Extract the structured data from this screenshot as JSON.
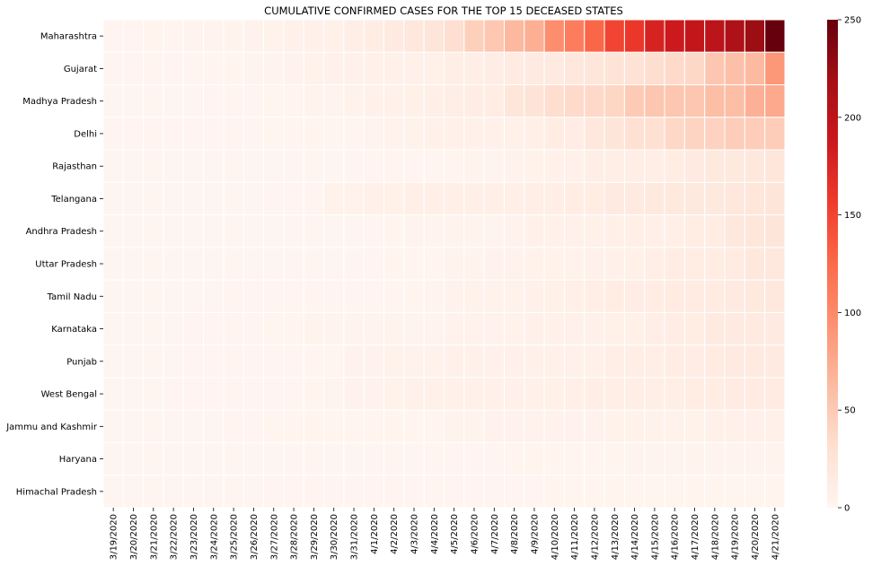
{
  "chart_data": {
    "type": "heatmap",
    "title": "CUMULATIVE CONFIRMED CASES FOR THE TOP 15 DECEASED STATES",
    "xlabel": "",
    "ylabel": "",
    "colormap": "Reds",
    "color_range": [
      0,
      250
    ],
    "colorbar_ticks": [
      0,
      50,
      100,
      150,
      200,
      250
    ],
    "x": [
      "3/19/2020",
      "3/20/2020",
      "3/21/2020",
      "3/22/2020",
      "3/23/2020",
      "3/24/2020",
      "3/25/2020",
      "3/26/2020",
      "3/27/2020",
      "3/28/2020",
      "3/29/2020",
      "3/30/2020",
      "3/31/2020",
      "4/1/2020",
      "4/2/2020",
      "4/3/2020",
      "4/4/2020",
      "4/5/2020",
      "4/6/2020",
      "4/7/2020",
      "4/8/2020",
      "4/9/2020",
      "4/10/2020",
      "4/11/2020",
      "4/12/2020",
      "4/13/2020",
      "4/14/2020",
      "4/15/2020",
      "4/16/2020",
      "4/17/2020",
      "4/18/2020",
      "4/19/2020",
      "4/20/2020",
      "4/21/2020"
    ],
    "y": [
      "Maharashtra",
      "Gujarat",
      "Madhya Pradesh",
      "Delhi",
      "Rajasthan",
      "Telangana",
      "Andhra Pradesh",
      "Uttar Pradesh",
      "Tamil Nadu",
      "Karnataka",
      "Punjab",
      "West Bengal",
      "Jammu and Kashmir",
      "Haryana",
      "Himachal Pradesh"
    ],
    "values": [
      [
        1,
        1,
        2,
        2,
        3,
        3,
        3,
        4,
        5,
        6,
        7,
        8,
        10,
        12,
        16,
        20,
        24,
        32,
        45,
        52,
        64,
        72,
        97,
        110,
        127,
        150,
        160,
        178,
        187,
        194,
        201,
        211,
        223,
        251
      ],
      [
        1,
        1,
        1,
        1,
        1,
        2,
        2,
        3,
        3,
        4,
        5,
        6,
        6,
        6,
        6,
        7,
        8,
        10,
        11,
        13,
        15,
        16,
        17,
        19,
        22,
        26,
        28,
        33,
        36,
        38,
        53,
        58,
        63,
        90
      ],
      [
        0,
        0,
        0,
        0,
        0,
        1,
        1,
        1,
        2,
        2,
        3,
        3,
        5,
        6,
        7,
        8,
        9,
        11,
        13,
        14,
        22,
        26,
        33,
        36,
        37,
        40,
        50,
        53,
        53,
        53,
        60,
        60,
        70,
        76
      ],
      [
        1,
        1,
        1,
        1,
        1,
        1,
        1,
        1,
        2,
        2,
        2,
        2,
        2,
        3,
        4,
        5,
        6,
        7,
        7,
        7,
        8,
        9,
        12,
        13,
        19,
        24,
        30,
        30,
        38,
        42,
        43,
        47,
        47,
        47
      ],
      [
        0,
        0,
        0,
        0,
        0,
        0,
        0,
        0,
        0,
        0,
        0,
        0,
        0,
        1,
        1,
        1,
        1,
        2,
        3,
        3,
        4,
        5,
        6,
        7,
        11,
        11,
        11,
        11,
        14,
        17,
        18,
        18,
        20,
        22
      ],
      [
        0,
        0,
        0,
        0,
        0,
        0,
        0,
        0,
        1,
        1,
        1,
        5,
        5,
        7,
        8,
        9,
        9,
        9,
        9,
        9,
        9,
        11,
        11,
        12,
        14,
        16,
        16,
        18,
        18,
        18,
        18,
        21,
        23,
        24
      ],
      [
        0,
        0,
        0,
        0,
        0,
        0,
        0,
        0,
        0,
        0,
        0,
        0,
        0,
        1,
        2,
        3,
        3,
        3,
        3,
        3,
        4,
        6,
        6,
        7,
        8,
        9,
        9,
        9,
        9,
        12,
        14,
        20,
        22,
        24
      ],
      [
        0,
        0,
        0,
        0,
        0,
        0,
        0,
        0,
        0,
        0,
        0,
        0,
        0,
        1,
        2,
        2,
        2,
        3,
        3,
        4,
        4,
        5,
        5,
        5,
        6,
        6,
        8,
        11,
        14,
        14,
        14,
        15,
        20,
        21
      ],
      [
        0,
        0,
        0,
        0,
        0,
        0,
        1,
        1,
        1,
        1,
        1,
        1,
        1,
        1,
        1,
        2,
        3,
        4,
        5,
        5,
        5,
        7,
        8,
        9,
        10,
        12,
        13,
        14,
        15,
        15,
        15,
        16,
        18,
        20
      ],
      [
        0,
        0,
        0,
        0,
        1,
        1,
        1,
        1,
        2,
        2,
        3,
        3,
        3,
        3,
        3,
        3,
        3,
        4,
        4,
        4,
        5,
        6,
        6,
        6,
        6,
        8,
        8,
        10,
        13,
        14,
        16,
        17,
        17,
        17
      ],
      [
        0,
        0,
        0,
        0,
        1,
        1,
        1,
        1,
        1,
        1,
        1,
        2,
        4,
        4,
        5,
        5,
        5,
        6,
        6,
        7,
        7,
        7,
        7,
        7,
        7,
        11,
        11,
        11,
        12,
        13,
        15,
        16,
        16,
        16
      ],
      [
        0,
        0,
        0,
        1,
        1,
        1,
        1,
        1,
        1,
        1,
        2,
        3,
        4,
        4,
        5,
        6,
        6,
        7,
        7,
        7,
        7,
        7,
        8,
        9,
        10,
        10,
        10,
        11,
        11,
        12,
        12,
        15,
        15,
        15
      ],
      [
        0,
        0,
        0,
        0,
        0,
        0,
        1,
        1,
        2,
        2,
        2,
        2,
        2,
        2,
        2,
        2,
        2,
        3,
        3,
        4,
        4,
        4,
        4,
        4,
        4,
        5,
        5,
        5,
        5,
        5,
        6,
        6,
        7,
        7
      ],
      [
        0,
        0,
        0,
        0,
        0,
        0,
        0,
        0,
        0,
        0,
        0,
        0,
        0,
        0,
        0,
        0,
        1,
        1,
        1,
        1,
        2,
        2,
        2,
        2,
        2,
        2,
        3,
        3,
        3,
        3,
        3,
        3,
        3,
        3
      ],
      [
        0,
        0,
        0,
        0,
        0,
        0,
        0,
        0,
        1,
        1,
        1,
        1,
        1,
        1,
        1,
        1,
        1,
        1,
        1,
        1,
        1,
        1,
        2,
        2,
        2,
        2,
        2,
        2,
        2,
        2,
        2,
        2,
        2,
        2
      ]
    ]
  }
}
